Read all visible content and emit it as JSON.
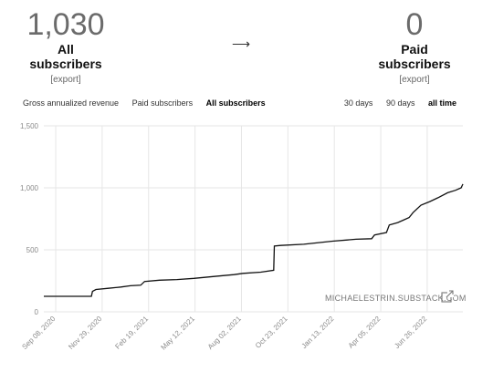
{
  "stats": {
    "all": {
      "value": "1,030",
      "label": "All subscribers",
      "export": "[export]"
    },
    "paid": {
      "value": "0",
      "label": "Paid subscribers",
      "export": "[export]"
    },
    "arrow": "⟶"
  },
  "tabs": {
    "metrics": [
      "Gross annualized revenue",
      "Paid subscribers",
      "All subscribers"
    ],
    "metrics_active": "All subscribers",
    "ranges": [
      "30 days",
      "90 days",
      "all time"
    ],
    "ranges_active": "all time"
  },
  "watermark": "MICHAELESTRIN.SUBSTACK.COM",
  "chart_data": {
    "type": "line",
    "title": "",
    "xlabel": "",
    "ylabel": "",
    "ylim": [
      0,
      1500
    ],
    "yticks": [
      0,
      500,
      1000,
      1500
    ],
    "ytick_labels": [
      "0",
      "500",
      "1,000",
      "1,500"
    ],
    "xticks": [
      "2020-09-08",
      "2020-11-29",
      "2021-02-19",
      "2021-05-12",
      "2021-08-02",
      "2021-10-23",
      "2022-01-13",
      "2022-04-05",
      "2022-06-26"
    ],
    "xtick_labels": [
      "Sep 08, 2020",
      "Nov 29, 2020",
      "Feb 19, 2021",
      "May 12, 2021",
      "Aug 02, 2021",
      "Oct 23, 2021",
      "Jan 13, 2022",
      "Apr 05, 2022",
      "Jun 26, 2022"
    ],
    "xlim": [
      "2020-08-18",
      "2022-08-28"
    ],
    "grid": true,
    "series": [
      {
        "x": [
          "2020-08-18",
          "2020-11-10",
          "2020-11-12",
          "2020-11-18",
          "2020-12-10",
          "2021-01-01",
          "2021-01-18",
          "2021-02-05",
          "2021-02-12",
          "2021-03-10",
          "2021-04-10",
          "2021-05-10",
          "2021-06-15",
          "2021-07-20",
          "2021-08-05",
          "2021-09-05",
          "2021-09-28",
          "2021-09-29",
          "2021-10-10",
          "2021-11-20",
          "2022-01-10",
          "2022-02-20",
          "2022-03-20",
          "2022-03-25",
          "2022-04-15",
          "2022-04-20",
          "2022-05-05",
          "2022-05-15",
          "2022-05-25",
          "2022-06-01",
          "2022-06-15",
          "2022-07-01",
          "2022-07-15",
          "2022-08-01",
          "2022-08-15",
          "2022-08-25",
          "2022-08-28"
        ],
        "values": [
          125,
          125,
          165,
          180,
          190,
          200,
          210,
          215,
          245,
          255,
          260,
          270,
          285,
          300,
          310,
          320,
          335,
          530,
          535,
          545,
          570,
          585,
          590,
          620,
          640,
          700,
          720,
          740,
          760,
          800,
          860,
          890,
          920,
          960,
          980,
          1000,
          1030
        ]
      }
    ]
  }
}
